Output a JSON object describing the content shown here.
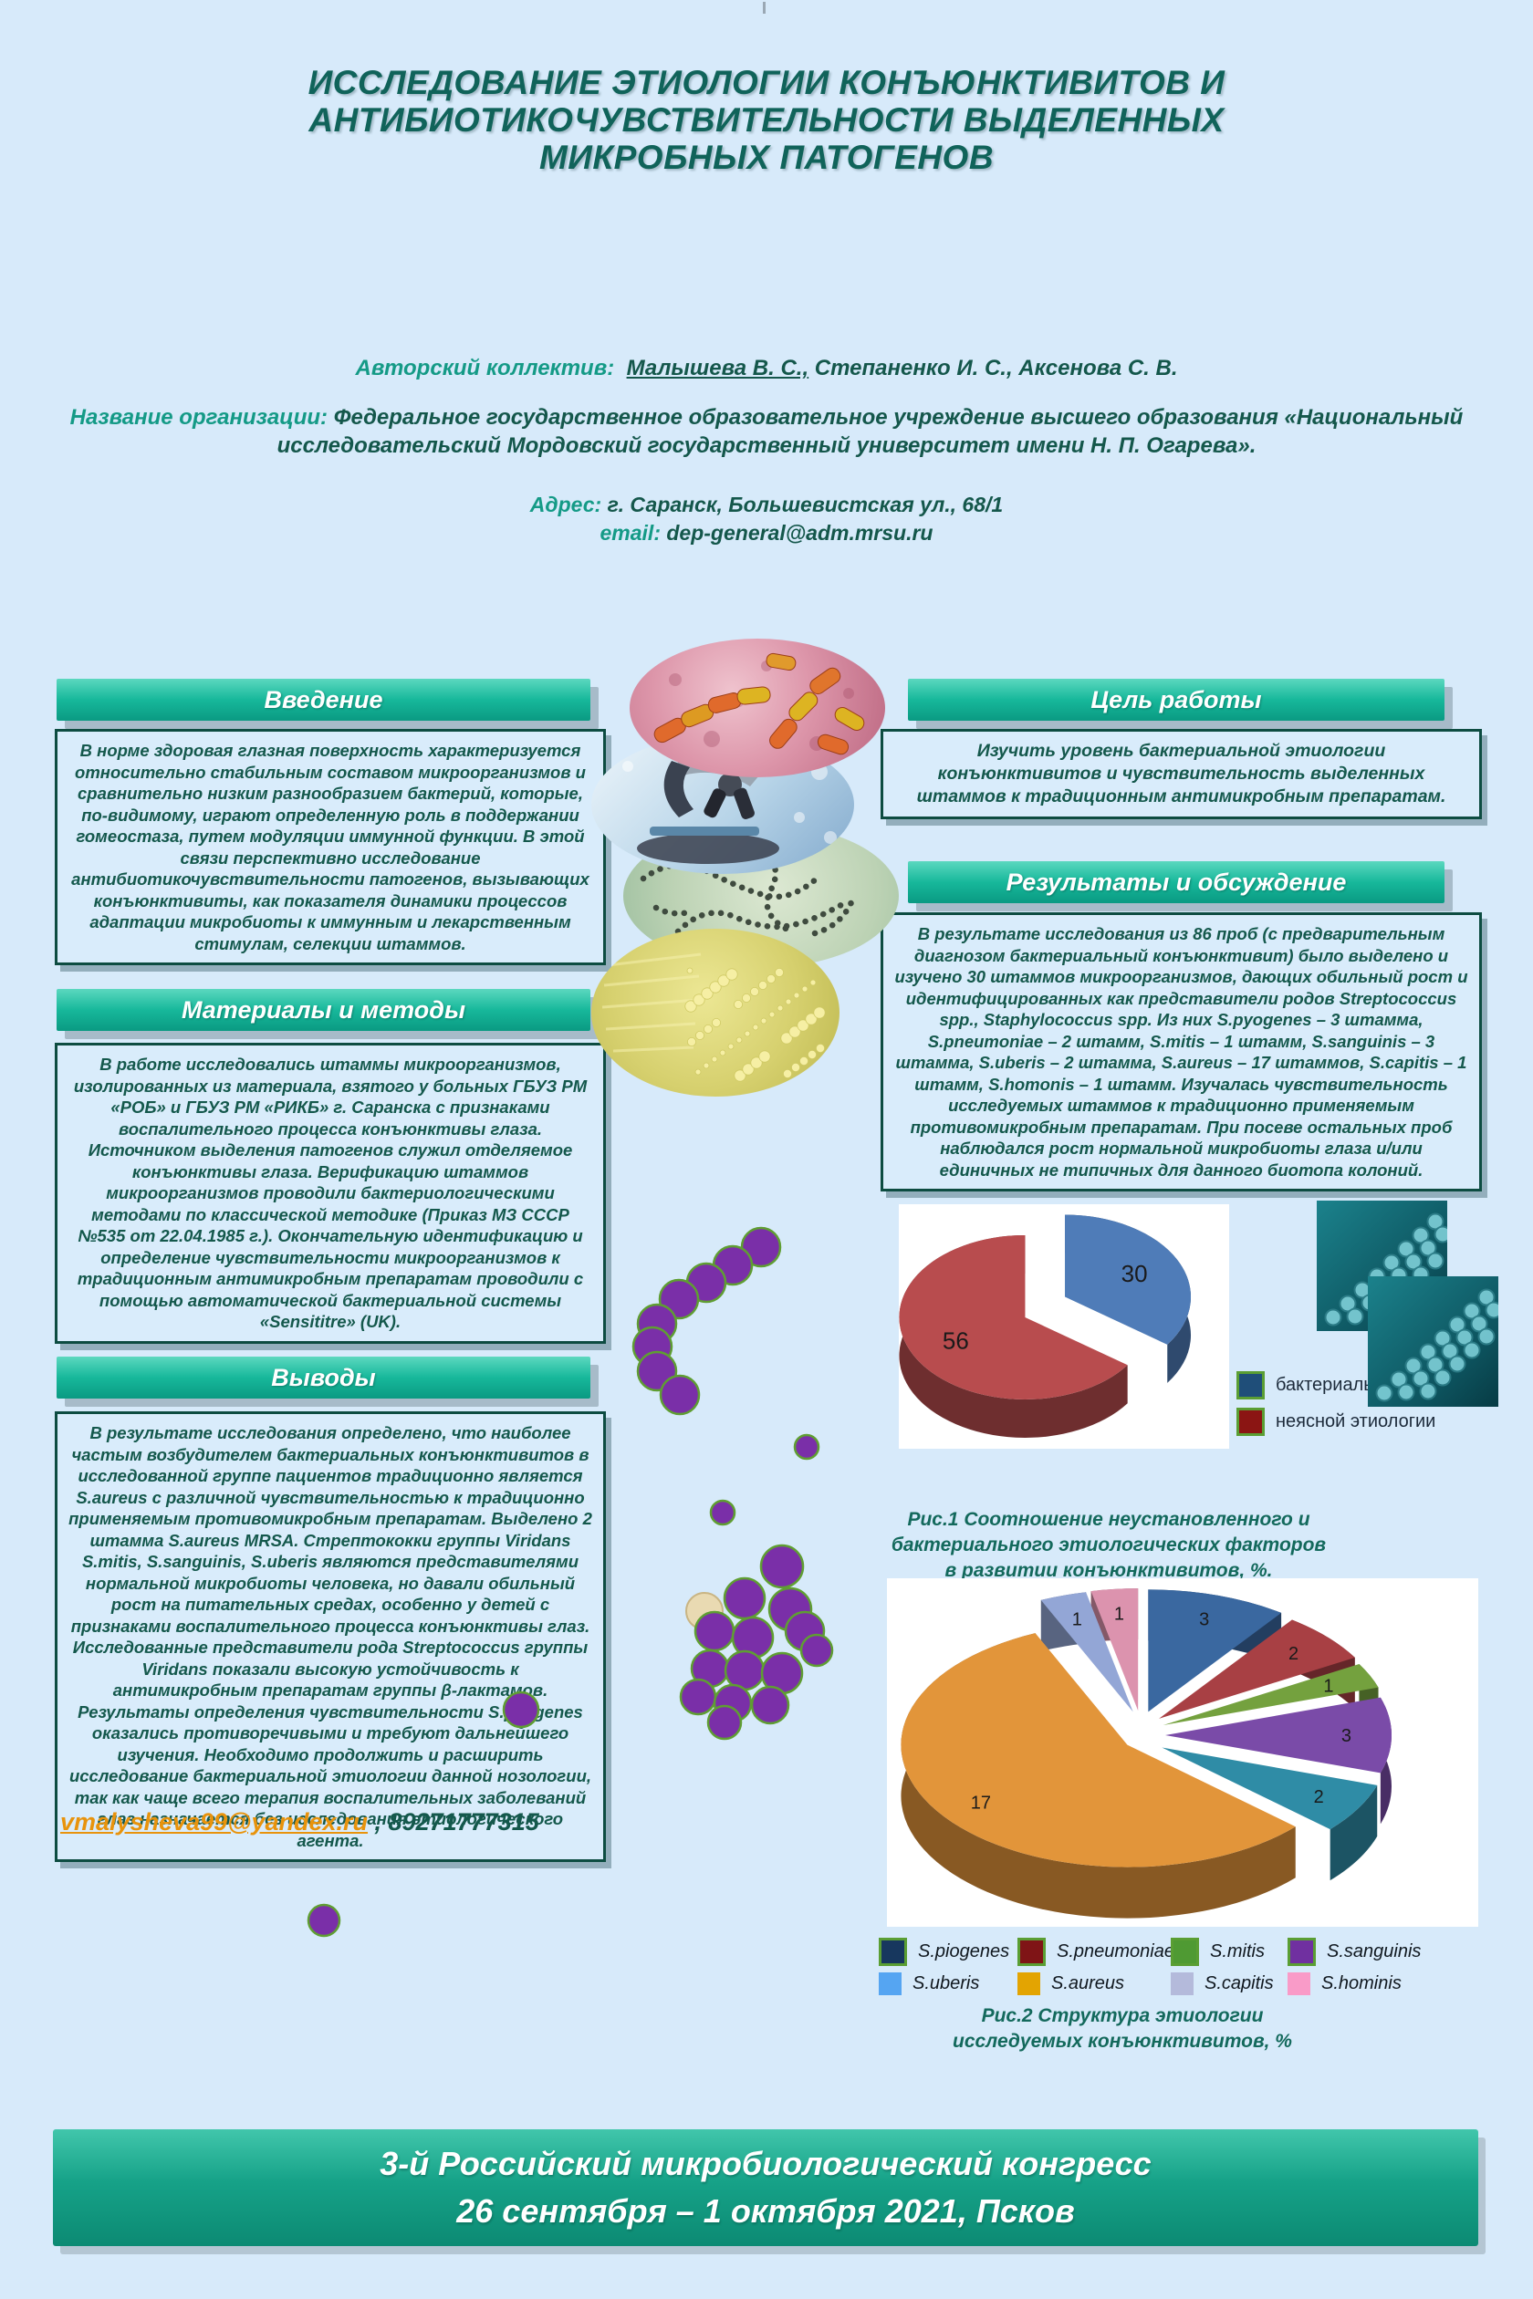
{
  "header": {
    "title_lines": [
      "ИССЛЕДОВАНИЕ ЭТИОЛОГИИ КОНЪЮНКТИВИТОВ И",
      "АНТИБИОТИКОЧУВСТВИТЕЛЬНОСТИ ВЫДЕЛЕННЫХ",
      "МИКРОБНЫХ ПАТОГЕНОВ"
    ],
    "authors_label": "Авторский коллектив:",
    "authors_underlined": "Малышева В. С.,",
    "authors_rest": " Степаненко И. С., Аксенова С. В.",
    "org_label": "Название организации:",
    "org_text": "Федеральное государственное образовательное учреждение высшего образования «Национальный исследовательский Мордовский государственный университет имени Н. П. Огарева».",
    "address_label": "Адрес:",
    "address_text": "г. Саранск, Большевистская ул., 68/1",
    "email_label": "email:",
    "email_text": "dep-general@adm.mrsu.ru"
  },
  "sections": {
    "intro": {
      "title": "Введение",
      "body": "В норме здоровая глазная поверхность характеризуется относительно стабильным составом микроорганизмов и сравнительно низким разнообразием бактерий,  которые, по-видимому, играют определенную роль в поддержании гомеостаза, путем модуляции иммунной функции. В этой связи перспективно исследование антибиотикочувствительности патогенов, вызывающих конъюнктивиты, как показателя динамики процессов адаптации микробиоты  к иммунным и лекарственным стимулам, селекции штаммов."
    },
    "methods": {
      "title": "Материалы и методы",
      "body": "В работе исследовались штаммы микроорганизмов, изолированных из материала, взятого у больных ГБУЗ РМ «РОБ» и ГБУЗ РМ «РИКБ» г. Саранска с признаками воспалительного процесса конъюнктивы глаза. Источником выделения патогенов служил отделяемое конъюнктивы глаза. Верификацию штаммов микроорганизмов проводили бактериологическими методами по классической методике (Приказ МЗ СССР №535 от 22.04.1985 г.). Окончательную идентификацию и определение чувствительности микроорганизмов к традиционным антимикробным препаратам проводили с помощью автоматической бактериальной системы «Sensititre» (UK)."
    },
    "conclusions": {
      "title": "Выводы",
      "body": "В результате исследования определено, что наиболее частым возбудителем бактериальных конъюнктивитов в исследованной группе пациентов традиционно является S.aureus с различной чувствительностью к традиционно применяемым противомикробным препаратам. Выделено 2 штамма S.aureus MRSA. Стрептококки группы Viridans S.mitis, S.sanguinis, S.uberis являются представителями нормальной микробиоты человека, но давали обильный рост на питательных средах, особенно у детей с признаками воспалительного процесса конъюнктивы глаз. Исследованные представители рода Streptococcus группы Viridans показали высокую устойчивость к антимикробным препаратам группы β-лактамов.  Результаты определения чувствительности S.pyogenes оказались противоречивыми и требуют дальнейшего изучения. Необходимо продолжить и расширить исследование бактериальной этиологии данной нозологии, так как чаще всего терапия воспалительных заболеваний глаз назначается без исследования этиологического агента."
    },
    "goal": {
      "title": "Цель работы",
      "body": "Изучить уровень бактериальной этиологии конъюнктивитов и чувствительность выделенных штаммов к традиционным антимикробным препаратам."
    },
    "results": {
      "title": "Результаты и обсуждение",
      "body": "В результате исследования из 86 проб (с предварительным диагнозом бактериальный конъюнктивит) было выделено и изучено 30 штаммов микроорганизмов, дающих обильный рост и идентифицированных как представители родов Streptococcus spp., Staphylococcus spp. Из них S.pyogenes – 3 штамма, S.pneumoniae – 2 штамм, S.mitis – 1 штамм, S.sanguinis – 3 штамма, S.uberis – 2 штамма, S.aureus – 17 штаммов, S.capitis – 1 штамм, S.homonis – 1 штамм. Изучалась чувствительность исследуемых штаммов к традиционно применяемым противомикробным препаратам. При посеве остальных проб наблюдался рост нормальной микробиоты глаза и/или единичных не типичных для данного биотопа колоний."
    }
  },
  "contact": {
    "email": "vmalysheva99@yandex.ru",
    "separator": " , ",
    "phone": "89271777315"
  },
  "chart_data": [
    {
      "type": "pie",
      "figure": "Рис.1",
      "caption": "Рис.1  Соотношение неустановленного и бактериального этиологических факторов  в развитии конъюнктивитов, %.",
      "labels": [
        "бактериальная этиология",
        "неясной этиологии"
      ],
      "values": [
        30,
        56
      ],
      "colors": [
        "#4f7cb8",
        "#b84c4e"
      ],
      "legend_colors": [
        "#1f4e79",
        "#8b1513"
      ],
      "legend_position": "right",
      "style": "3d-exploded"
    },
    {
      "type": "pie",
      "figure": "Рис.2",
      "caption": "Рис.2  Структура этиологии исследуемых конъюнктивитов, %",
      "labels": [
        "S.piogenes",
        "S.pneumoniae",
        "S.mitis",
        "S.sanguinis",
        "S.uberis",
        "S.aureus",
        "S.capitis",
        "S.hominis"
      ],
      "values": [
        3,
        2,
        1,
        3,
        2,
        17,
        1,
        1
      ],
      "colors": [
        "#3a68a0",
        "#a84044",
        "#74a13e",
        "#7a4ba8",
        "#2f8ca6",
        "#e2953a",
        "#93a6d6",
        "#dc93ae"
      ],
      "legend_colors": [
        "#17375e",
        "#7f1416",
        "#4f9a33",
        "#7030a0",
        "#55a5f2",
        "#e3a402",
        "#b4badb",
        "#f99bc8"
      ],
      "legend_position": "bottom",
      "style": "3d-exploded"
    }
  ],
  "footer": {
    "line1": "3-й Российский микробиологический конгресс",
    "line2": "26 сентября – 1 октября 2021, Псков"
  }
}
